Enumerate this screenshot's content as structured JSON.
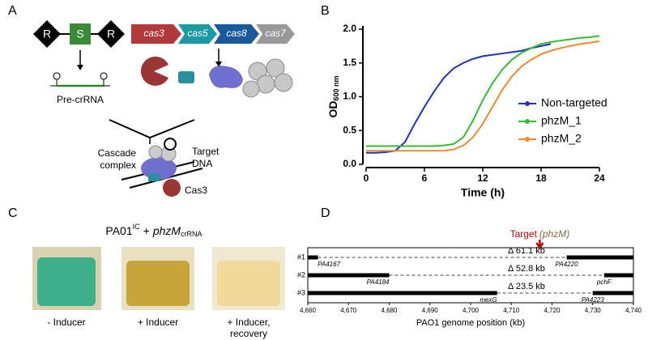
{
  "panel_labels": [
    "A",
    "B",
    "C",
    "D"
  ],
  "panel_a": {
    "promoter": [
      "R",
      "S",
      "R"
    ],
    "genes": [
      "cas3",
      "cas5",
      "cas8",
      "cas7"
    ],
    "pre_crrna": "Pre-crRNA",
    "cascade": [
      "Cascade",
      "complex"
    ],
    "target_dna": [
      "Target",
      "DNA"
    ],
    "cas3": "Cas3"
  },
  "panel_c": {
    "strain": "PA01",
    "strain_sup": "IC",
    "plus": "+",
    "gene": "phzM",
    "gene_sub": "crRNA",
    "conditions": [
      [
        "- Inducer"
      ],
      [
        "+ Inducer"
      ],
      [
        "+ Inducer,",
        "recovery"
      ]
    ]
  },
  "chart_data": [
    {
      "type": "line",
      "xlabel": "Time (h)",
      "ylabel": "OD",
      "ylabel_sub": "600 nm",
      "x": [
        0,
        1,
        2,
        3,
        4,
        5,
        6,
        7,
        8,
        9,
        10,
        11,
        12,
        13,
        14,
        15,
        16,
        17,
        18,
        19,
        20,
        21,
        22,
        23,
        24
      ],
      "series": [
        {
          "name": "Non-targeted",
          "color": "#2233bb",
          "values": [
            0.17,
            0.17,
            0.18,
            0.2,
            0.33,
            0.6,
            0.85,
            1.08,
            1.28,
            1.42,
            1.5,
            1.56,
            1.6,
            1.62,
            1.64,
            1.66,
            1.68,
            1.72,
            1.75,
            1.78,
            null,
            null,
            null,
            null,
            null
          ]
        },
        {
          "name": "phzM_1",
          "color": "#33bb33",
          "values": [
            0.27,
            0.27,
            0.27,
            0.27,
            0.27,
            0.27,
            0.27,
            0.27,
            0.28,
            0.3,
            0.4,
            0.65,
            0.95,
            1.2,
            1.4,
            1.55,
            1.65,
            1.72,
            1.78,
            1.81,
            1.83,
            1.85,
            1.87,
            1.88,
            1.9
          ]
        },
        {
          "name": "phzM_2",
          "color": "#f08a2b",
          "values": [
            0.2,
            0.2,
            0.2,
            0.2,
            0.2,
            0.2,
            0.2,
            0.2,
            0.2,
            0.22,
            0.28,
            0.4,
            0.6,
            0.85,
            1.1,
            1.3,
            1.45,
            1.55,
            1.63,
            1.68,
            1.72,
            1.75,
            1.78,
            1.8,
            1.82
          ]
        }
      ],
      "xlim": [
        0,
        24
      ],
      "xticks": [
        0,
        6,
        12,
        18,
        24
      ],
      "ylim": [
        0,
        2
      ],
      "yticks": [
        {
          "value": 0,
          "label": "0.0"
        },
        0.5,
        {
          "value": 1,
          "label": "1.0"
        },
        1.5,
        {
          "value": 2,
          "label": "2.0"
        }
      ],
      "legend": "right"
    },
    {
      "type": "deletion-map",
      "xlabel": "PAO1 genome position (kb)",
      "xlim": [
        4660,
        4740
      ],
      "xticks": [
        {
          "value": 4660,
          "label": "4,660"
        },
        {
          "value": 4670,
          "label": "4,670"
        },
        {
          "value": 4680,
          "label": "4,680"
        },
        {
          "value": 4690,
          "label": "4,690"
        },
        {
          "value": 4700,
          "label": "4,700"
        },
        {
          "value": 4710,
          "label": "4,710"
        },
        {
          "value": 4720,
          "label": "4,720"
        },
        {
          "value": 4730,
          "label": "4,730"
        },
        {
          "value": 4740,
          "label": "4,740"
        }
      ],
      "target": {
        "label": "Target",
        "gene": "(phzM)",
        "position": 4717
      },
      "rows": [
        {
          "name": "#1",
          "deletion": [
            4662.5,
            4723.6
          ],
          "deletion_label": "Δ 61.1 kb",
          "genes": [
            "PA4167",
            "PA4220"
          ]
        },
        {
          "name": "#2",
          "deletion": [
            4680,
            4732.8
          ],
          "deletion_label": "Δ 52.8 kb",
          "genes": [
            "PA4184",
            "pchF"
          ]
        },
        {
          "name": "#3",
          "deletion": [
            4706.5,
            4730
          ],
          "deletion_label": "Δ 23.5 kb",
          "genes": [
            "mexG",
            "PA4223"
          ]
        }
      ]
    }
  ]
}
